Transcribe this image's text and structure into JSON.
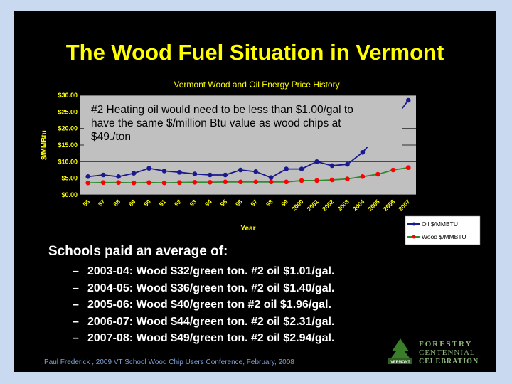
{
  "slide": {
    "title": "The Wood Fuel Situation in Vermont",
    "lead": "Schools paid an average of:",
    "bullets": [
      "2003-04: Wood $32/green ton. #2 oil $1.01/gal.",
      "2004-05: Wood $36/green ton. #2 oil $1.40/gal.",
      "2005-06: Wood $40/green ton  #2 oil $1.96/gal.",
      "2006-07: Wood $44/green ton. #2 oil $2.31/gal.",
      "2007-08: Wood $49/green ton. #2 oil $2.94/gal."
    ],
    "bullet_dash": "–",
    "footer": "Paul Frederick , 2009 VT School Wood Chip Users Conference, February, 2008",
    "logo": {
      "line1": "FORESTRY",
      "line2": "CENTENNIAL",
      "line3": "CELEBRATION",
      "badge": "VERMONT"
    }
  },
  "colors": {
    "background": "#000000",
    "title": "#ffff00",
    "plot_area": "#c0c0c0",
    "oil": "#1a1a8c",
    "wood_marker": "#ff0000",
    "wood_line": "#2e8b2e"
  },
  "chart_data": {
    "type": "line",
    "title": "Vermont Wood and Oil Energy Price History",
    "xlabel": "Year",
    "ylabel": "$/MMBtu",
    "x": [
      "86",
      "87",
      "88",
      "89",
      "90",
      "91",
      "92",
      "93",
      "94",
      "95",
      "96",
      "97",
      "98",
      "99",
      "2000",
      "2001",
      "2002",
      "2003",
      "2004",
      "2005",
      "2006",
      "2007"
    ],
    "yticks": [
      "$0.00",
      "$5.00",
      "$10.00",
      "$15.00",
      "$20.00",
      "$25.00",
      "$30.00"
    ],
    "ylim": [
      0,
      30
    ],
    "grid": true,
    "legend": "bottom-right",
    "annotation": "#2 Heating oil would need to be less than $1.00/gal to have the same $/million Btu value as wood chips at $49./ton",
    "series": [
      {
        "name": "Oil $/MMBTU",
        "values": [
          5.5,
          6.0,
          5.5,
          6.5,
          8.0,
          7.2,
          6.8,
          6.3,
          6.0,
          6.0,
          7.5,
          7.0,
          5.2,
          7.8,
          7.8,
          10.0,
          8.8,
          9.2,
          12.8,
          18.0,
          22.5,
          28.5
        ]
      },
      {
        "name": "Wood $/MMBTU",
        "values": [
          3.6,
          3.7,
          3.7,
          3.6,
          3.7,
          3.6,
          3.7,
          3.8,
          3.8,
          3.9,
          3.9,
          3.9,
          3.9,
          3.9,
          4.3,
          4.3,
          4.5,
          4.8,
          5.5,
          6.2,
          7.5,
          8.2
        ]
      }
    ]
  }
}
